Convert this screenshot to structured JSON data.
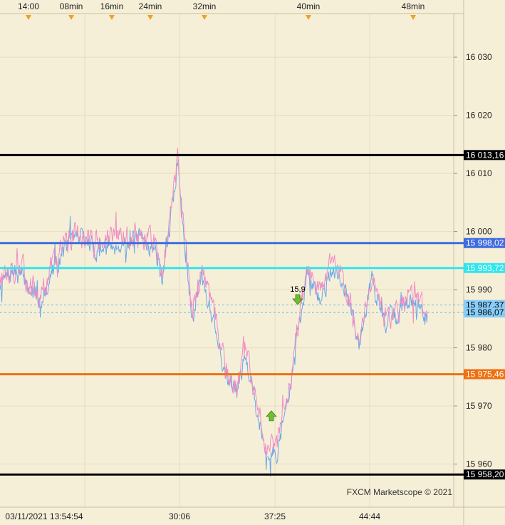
{
  "chart_data": {
    "type": "line",
    "watermark": "FXCM Marketscope © 2021",
    "top_time_labels": [
      "14:00",
      "08min",
      "16min",
      "24min",
      "32min",
      "40min",
      "48min"
    ],
    "bottom_time_labels": [
      "03/11/2021 13:54:54",
      "30:06",
      "37:25",
      "44:44"
    ],
    "y_ticks": [
      "16 030",
      "16 020",
      "16 010",
      "16 000",
      "15 990",
      "15 980",
      "15 970",
      "15 960"
    ],
    "ylim": [
      15954.3,
      16037.5
    ],
    "grid": true,
    "levels": [
      {
        "label": "16 013,16",
        "value": 16013.16,
        "color": "#000000",
        "label_bg": "#000000",
        "label_color": "#FFFFFF",
        "style": "solid"
      },
      {
        "label": "15 998,02",
        "value": 15998.02,
        "color": "#3F6BE0",
        "label_bg": "#3F6BE0",
        "label_color": "#FFFFFF",
        "style": "solid"
      },
      {
        "label": "15 993,72",
        "value": 15993.72,
        "color": "#2FE6EE",
        "label_bg": "#2FE6EE",
        "label_color": "#FFFFFF",
        "style": "solid"
      },
      {
        "label": "15 987,37",
        "value": 15987.37,
        "color": "#6EB8E8",
        "label_bg": "#87CEFA",
        "label_color": "#000000",
        "style": "dashed"
      },
      {
        "label": "15 986,07",
        "value": 15986.07,
        "color": "#6EB8E8",
        "label_bg": "#87CEFA",
        "label_color": "#000000",
        "style": "dashed"
      },
      {
        "label": "15 975,46",
        "value": 15975.46,
        "color": "#F07010",
        "label_bg": "#F07010",
        "label_color": "#FFFFFF",
        "style": "solid"
      },
      {
        "label": "15 958,20",
        "value": 15958.2,
        "color": "#000000",
        "label_bg": "#000000",
        "label_color": "#FFFFFF",
        "style": "solid"
      }
    ],
    "trade_markers": [
      {
        "type": "sell",
        "label": "15,9",
        "value": 15988.3,
        "color": "#6FBF2A"
      },
      {
        "type": "buy",
        "value": 15968.3,
        "color": "#6FBF2A"
      }
    ],
    "series": [
      {
        "role": "bid",
        "color": "#6AA8E8",
        "noise": 0.9,
        "offset": -1.0,
        "seed": 7
      },
      {
        "role": "ask",
        "color": "#F08CC4",
        "noise": 1.1,
        "offset": 0.0,
        "seed": 13
      }
    ],
    "price_path": [
      {
        "t": 0,
        "p": 15991.8
      },
      {
        "t": 0.03,
        "p": 15994.0
      },
      {
        "t": 0.06,
        "p": 15992.5
      },
      {
        "t": 0.09,
        "p": 15988.5
      },
      {
        "t": 0.12,
        "p": 15993.8
      },
      {
        "t": 0.15,
        "p": 15997.8
      },
      {
        "t": 0.18,
        "p": 16000.5
      },
      {
        "t": 0.22,
        "p": 15998.0
      },
      {
        "t": 0.27,
        "p": 15998.8
      },
      {
        "t": 0.33,
        "p": 15999.3
      },
      {
        "t": 0.36,
        "p": 15998.5
      },
      {
        "t": 0.38,
        "p": 15993.0
      },
      {
        "t": 0.4,
        "p": 16003.5
      },
      {
        "t": 0.415,
        "p": 16012.8
      },
      {
        "t": 0.43,
        "p": 16000.0
      },
      {
        "t": 0.45,
        "p": 15987.0
      },
      {
        "t": 0.47,
        "p": 15993.5
      },
      {
        "t": 0.5,
        "p": 15986.0
      },
      {
        "t": 0.53,
        "p": 15975.0
      },
      {
        "t": 0.555,
        "p": 15973.0
      },
      {
        "t": 0.575,
        "p": 15981.0
      },
      {
        "t": 0.6,
        "p": 15970.0
      },
      {
        "t": 0.63,
        "p": 15962.0
      },
      {
        "t": 0.65,
        "p": 15963.5
      },
      {
        "t": 0.68,
        "p": 15974.5
      },
      {
        "t": 0.7,
        "p": 15985.0
      },
      {
        "t": 0.72,
        "p": 15993.5
      },
      {
        "t": 0.75,
        "p": 15989.0
      },
      {
        "t": 0.78,
        "p": 15995.5
      },
      {
        "t": 0.81,
        "p": 15990.0
      },
      {
        "t": 0.84,
        "p": 15982.0
      },
      {
        "t": 0.87,
        "p": 15993.0
      },
      {
        "t": 0.9,
        "p": 15985.0
      },
      {
        "t": 0.93,
        "p": 15986.5
      },
      {
        "t": 0.96,
        "p": 15989.5
      },
      {
        "t": 1.0,
        "p": 15986.0
      }
    ]
  }
}
